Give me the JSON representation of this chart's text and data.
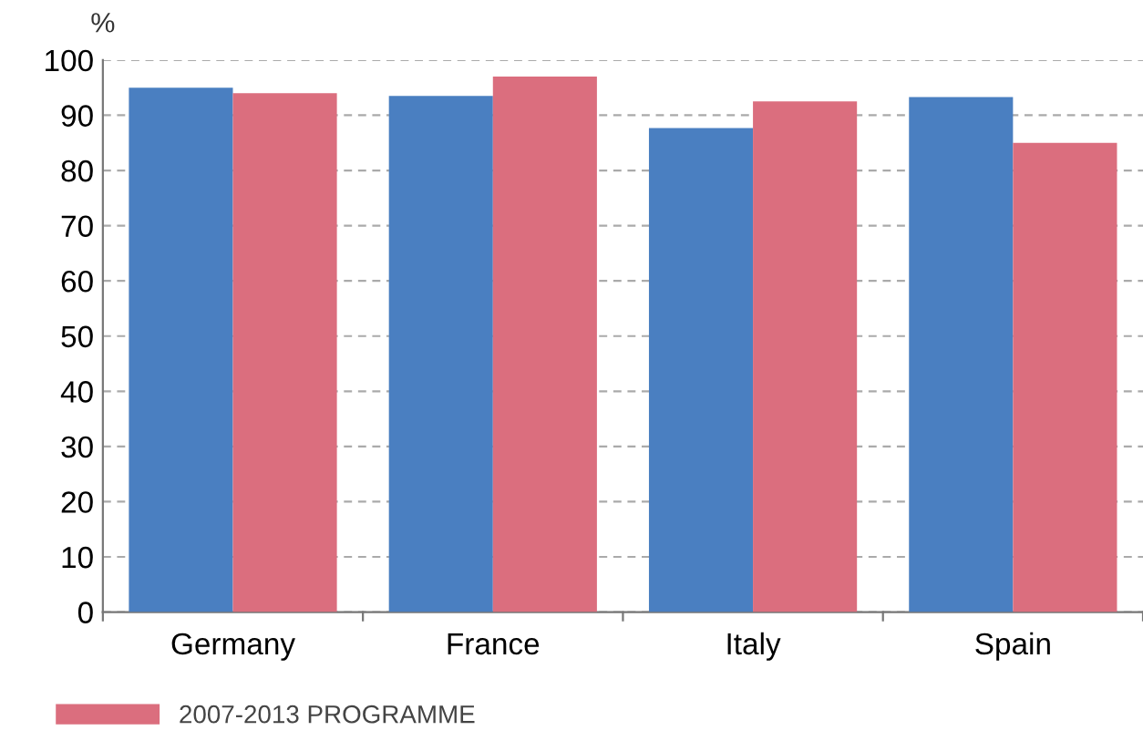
{
  "chart_data": {
    "type": "bar",
    "ylabel": "%",
    "categories": [
      "Germany",
      "France",
      "Italy",
      "Spain"
    ],
    "series": [
      {
        "color": "#4a7fc1",
        "values": [
          95,
          93.5,
          87.7,
          93.3
        ]
      },
      {
        "name": "2007-2013 PROGRAMME",
        "color": "#db6e7e",
        "values": [
          94,
          97,
          92.5,
          85
        ]
      }
    ],
    "ylim": [
      0,
      100
    ],
    "yticks": [
      0,
      10,
      20,
      30,
      40,
      50,
      60,
      70,
      80,
      90,
      100
    ],
    "grid": "y",
    "legend": "bottom left"
  }
}
